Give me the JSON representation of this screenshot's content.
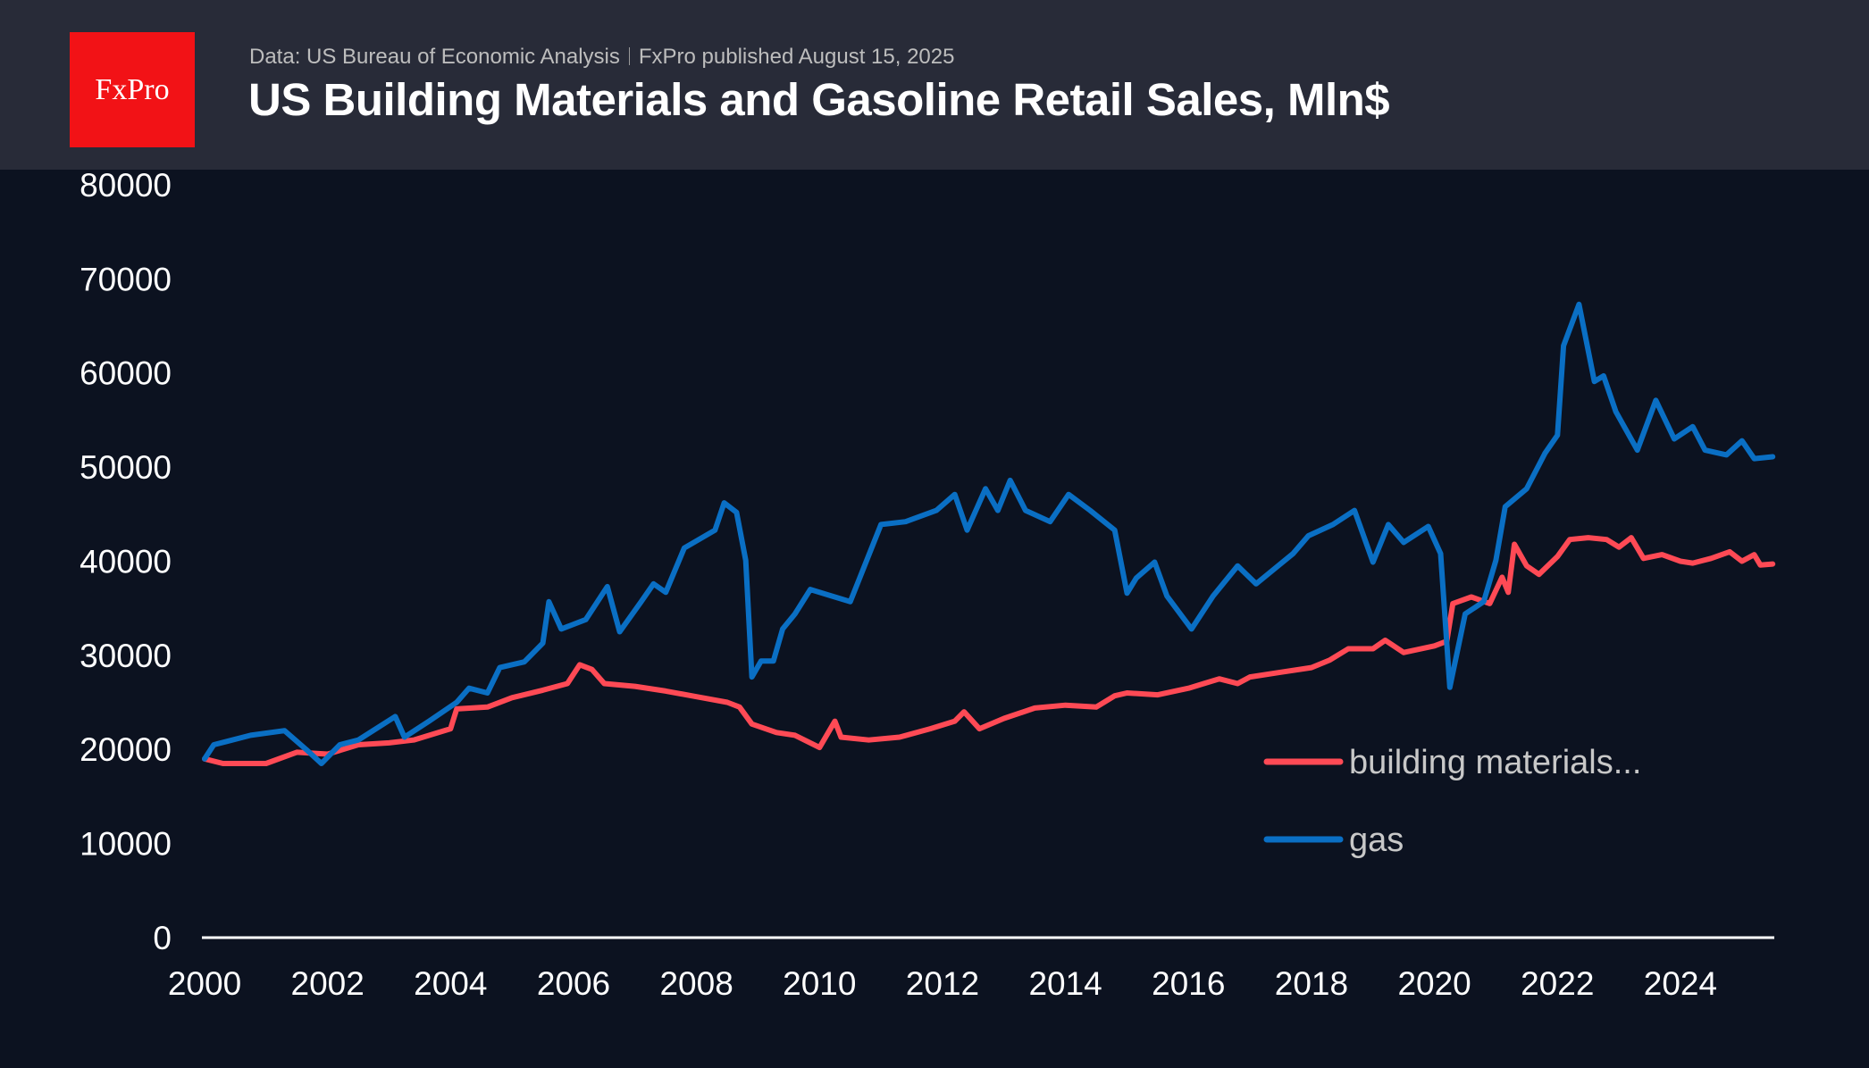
{
  "header": {
    "logo_text": "FxPro",
    "source": "Data: US Bureau of Economic Analysis",
    "published": "FxPro published August 15, 2025",
    "title": "US Building Materials and Gasoline Retail Sales, Mln$"
  },
  "chart_data": {
    "type": "line",
    "title": "US Building Materials and Gasoline Retail Sales, Mln$",
    "ylim": [
      0,
      80000
    ],
    "xlim": [
      2000,
      2025.6
    ],
    "y_ticks": [
      "0",
      "10000",
      "20000",
      "30000",
      "40000",
      "50000",
      "60000",
      "70000",
      "80000"
    ],
    "x_ticks": [
      "2000",
      "2002",
      "2004",
      "2006",
      "2008",
      "2010",
      "2012",
      "2014",
      "2016",
      "2018",
      "2020",
      "2022",
      "2024"
    ],
    "grid": false,
    "legend_position": "bottom-right",
    "series": [
      {
        "name": "building materials...",
        "color": "#ff4a55",
        "x": [
          2000.0,
          2000.3,
          2001.0,
          2001.5,
          2002.0,
          2002.5,
          2003.0,
          2003.4,
          2004.0,
          2004.1,
          2004.6,
          2005.0,
          2005.5,
          2005.9,
          2006.1,
          2006.3,
          2006.5,
          2007.0,
          2007.5,
          2008.0,
          2008.5,
          2008.7,
          2008.9,
          2009.3,
          2009.6,
          2010.0,
          2010.25,
          2010.35,
          2010.8,
          2011.3,
          2011.8,
          2012.2,
          2012.35,
          2012.6,
          2013.0,
          2013.5,
          2014.0,
          2014.5,
          2014.8,
          2015.0,
          2015.5,
          2016.0,
          2016.5,
          2016.8,
          2017.0,
          2017.5,
          2018.0,
          2018.3,
          2018.6,
          2019.0,
          2019.2,
          2019.5,
          2020.0,
          2020.2,
          2020.3,
          2020.6,
          2020.9,
          2021.1,
          2021.2,
          2021.3,
          2021.5,
          2021.7,
          2022.0,
          2022.2,
          2022.5,
          2022.8,
          2023.0,
          2023.2,
          2023.4,
          2023.7,
          2024.0,
          2024.2,
          2024.5,
          2024.8,
          2025.0,
          2025.2,
          2025.3,
          2025.5
        ],
        "values": [
          19000,
          18500,
          18500,
          19700,
          19500,
          20500,
          20700,
          21000,
          22200,
          24300,
          24500,
          25500,
          26300,
          27000,
          29000,
          28500,
          27000,
          26700,
          26200,
          25600,
          25000,
          24500,
          22700,
          21800,
          21500,
          20200,
          23000,
          21300,
          21000,
          21300,
          22200,
          23000,
          24000,
          22200,
          23300,
          24400,
          24700,
          24500,
          25700,
          26000,
          25800,
          26500,
          27500,
          27000,
          27700,
          28200,
          28700,
          29500,
          30700,
          30700,
          31600,
          30300,
          31000,
          31500,
          35500,
          36200,
          35500,
          38300,
          36700,
          41800,
          39500,
          38600,
          40500,
          42300,
          42500,
          42300,
          41500,
          42500,
          40300,
          40700,
          40000,
          39800,
          40300,
          41000,
          40000,
          40700,
          39600,
          39700
        ]
      },
      {
        "name": "gas",
        "color": "#0a6fc4",
        "x": [
          2000.0,
          2000.15,
          2000.75,
          2001.3,
          2001.65,
          2001.9,
          2002.2,
          2002.5,
          2003.1,
          2003.25,
          2003.65,
          2004.1,
          2004.3,
          2004.6,
          2004.8,
          2005.2,
          2005.5,
          2005.6,
          2005.8,
          2006.2,
          2006.55,
          2006.75,
          2007.1,
          2007.3,
          2007.5,
          2007.8,
          2008.3,
          2008.45,
          2008.65,
          2008.8,
          2008.9,
          2009.05,
          2009.25,
          2009.4,
          2009.6,
          2009.85,
          2010.2,
          2010.5,
          2011.0,
          2011.4,
          2011.9,
          2012.2,
          2012.4,
          2012.7,
          2012.9,
          2013.1,
          2013.35,
          2013.75,
          2014.05,
          2014.4,
          2014.8,
          2015.0,
          2015.15,
          2015.45,
          2015.65,
          2016.05,
          2016.4,
          2016.8,
          2017.1,
          2017.7,
          2017.95,
          2018.35,
          2018.7,
          2019.0,
          2019.25,
          2019.5,
          2019.9,
          2020.1,
          2020.25,
          2020.5,
          2020.8,
          2021.0,
          2021.15,
          2021.5,
          2021.8,
          2022.0,
          2022.1,
          2022.35,
          2022.6,
          2022.75,
          2022.95,
          2023.3,
          2023.6,
          2023.9,
          2024.2,
          2024.4,
          2024.75,
          2025.0,
          2025.2,
          2025.5
        ],
        "values": [
          19000,
          20500,
          21500,
          22000,
          20000,
          18500,
          20500,
          21000,
          23500,
          21300,
          23000,
          25000,
          26500,
          26000,
          28700,
          29300,
          31300,
          35700,
          32800,
          33800,
          37300,
          32500,
          35700,
          37600,
          36700,
          41400,
          43300,
          46200,
          45200,
          40100,
          27700,
          29400,
          29400,
          32800,
          34400,
          37000,
          36300,
          35700,
          43900,
          44200,
          45400,
          47100,
          43300,
          47700,
          45400,
          48600,
          45400,
          44200,
          47100,
          45400,
          43300,
          36600,
          38200,
          39900,
          36300,
          32800,
          36300,
          39500,
          37600,
          40800,
          42700,
          43900,
          45400,
          39900,
          43900,
          42000,
          43700,
          40800,
          26600,
          34400,
          35700,
          40100,
          45800,
          47700,
          51500,
          53400,
          62900,
          67300,
          59100,
          59700,
          55900,
          51800,
          57100,
          53000,
          54300,
          51800,
          51300,
          52800,
          50900,
          51100
        ]
      }
    ]
  }
}
